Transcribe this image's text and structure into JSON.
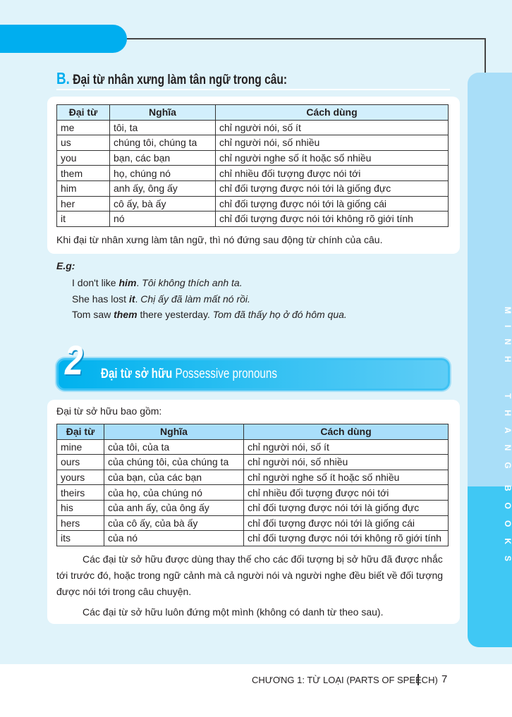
{
  "brand_tab": {
    "word1": "MINH",
    "word2": "THANG",
    "word3": "BOOKS",
    "colors": {
      "light": "#a9def8",
      "dark": "#40c8f4"
    }
  },
  "section_b": {
    "letter": "B.",
    "title": "Đại từ nhân xưng làm tân ngữ trong câu:",
    "table": {
      "headers": [
        "Đại từ",
        "Nghĩa",
        "Cách dùng"
      ],
      "rows": [
        [
          "me",
          "tôi, ta",
          "chỉ người nói, số ít"
        ],
        [
          "us",
          "chúng tôi, chúng ta",
          "chỉ người nói, số nhiều"
        ],
        [
          "you",
          "bạn, các bạn",
          "chỉ người nghe số ít hoặc số nhiều"
        ],
        [
          "them",
          "họ, chúng nó",
          "chỉ nhiều đối tượng được nói tới"
        ],
        [
          "him",
          "anh ấy, ông ấy",
          "chỉ đối tượng được nói tới là giống đực"
        ],
        [
          "her",
          "cô ấy, bà ấy",
          "chỉ đối tượng được nói tới là giống cái"
        ],
        [
          "it",
          "nó",
          "chỉ đối tượng được nói tới không rõ giới tính"
        ]
      ]
    },
    "note": "Khi đại từ nhân xưng làm tân ngữ, thì nó đứng sau động từ chính của câu.",
    "eg_label": "E.g:",
    "examples": [
      {
        "pre": "I don't like ",
        "bold": "him",
        "post": ". ",
        "vi": "Tôi không thích anh ta."
      },
      {
        "pre": "She has lost ",
        "bold": "it",
        "post": ". ",
        "vi": "Chị ấy đã làm mất nó rồi."
      },
      {
        "pre": "Tom saw ",
        "bold": "them",
        "post": " there yesterday. ",
        "vi": "Tom đã thấy họ ở đó hôm qua."
      }
    ]
  },
  "section_2": {
    "number": "2",
    "title_vi": "Đại từ sở hữu",
    "title_en": "Possessive pronouns",
    "intro": "Đại từ sở hữu bao gồm:",
    "table": {
      "headers": [
        "Đại từ",
        "Nghĩa",
        "Cách dùng"
      ],
      "rows": [
        [
          "mine",
          "của tôi, của ta",
          "chỉ người nói, số ít"
        ],
        [
          "ours",
          "của chúng tôi, của chúng ta",
          "chỉ người nói, số nhiều"
        ],
        [
          "yours",
          "của bạn, của các bạn",
          "chỉ người nghe số ít hoặc số nhiều"
        ],
        [
          "theirs",
          "của họ, của chúng nó",
          "chỉ nhiều đối tượng được nói tới"
        ],
        [
          "his",
          "của anh ấy, của ông ấy",
          "chỉ đối tượng được nói tới là giống đực"
        ],
        [
          "hers",
          "của cô ấy, của bà ấy",
          "chỉ đối tượng được nói tới là giống cái"
        ],
        [
          "its",
          "của nó",
          "chỉ đối tượng được nói tới không rõ giới tính"
        ]
      ]
    },
    "para1_lines": [
      "Các đại từ sở hữu được dùng thay thế cho các đối tượng bị sở hữu đã được nhắc",
      "tới trước đó, hoặc trong ngữ cảnh mà cả người nói và người nghe đều biết về đối tượng",
      "được nói tới trong câu chuyện."
    ],
    "para2": "Các đại từ sở hữu luôn đứng một mình (không có danh từ theo sau)."
  },
  "footer": {
    "chapter": "CHƯƠNG 1: TỪ LOẠI (PARTS OF SPEECH)",
    "page": "7"
  }
}
